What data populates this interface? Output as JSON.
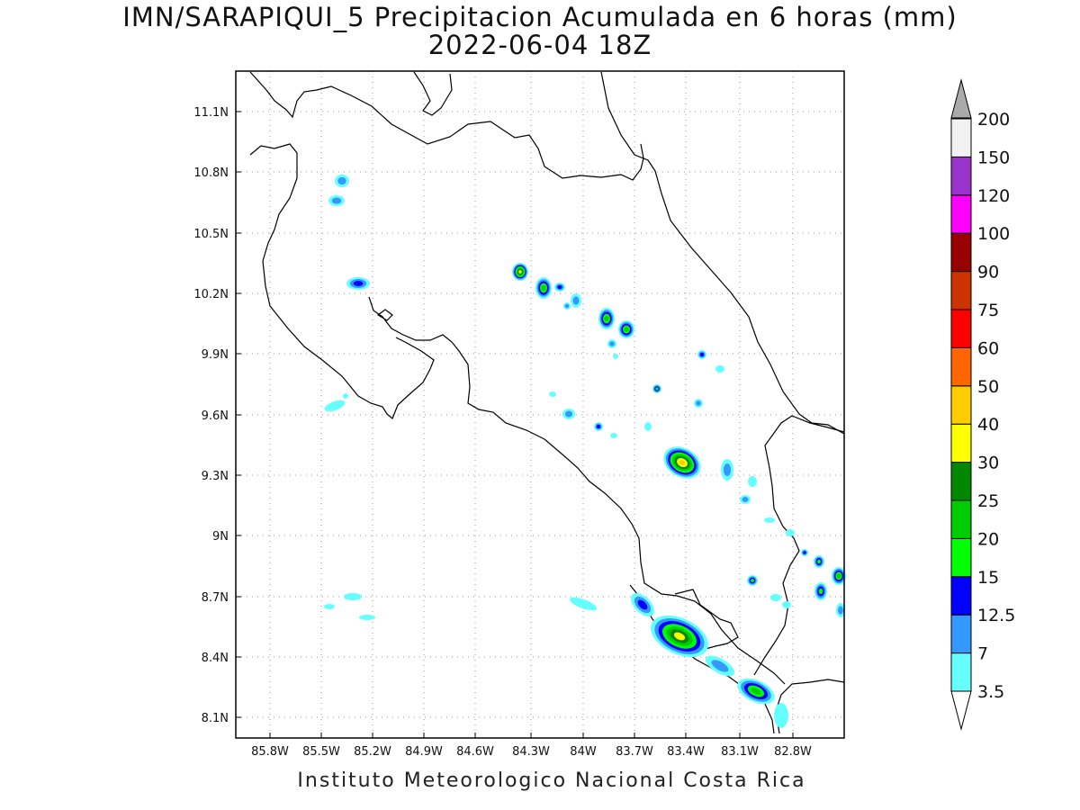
{
  "title": {
    "line1": "IMN/SARAPIQUI_5 Precipitacion Acumulada en 6 horas (mm)",
    "line2": "2022-06-04 18Z"
  },
  "credit": "Instituto Meteorologico Nacional Costa Rica",
  "axes": {
    "lon_ticks": [
      "85.8W",
      "85.5W",
      "85.2W",
      "84.9W",
      "84.6W",
      "84.3W",
      "84W",
      "83.7W",
      "83.4W",
      "83.1W",
      "82.8W"
    ],
    "lat_ticks": [
      "11.1N",
      "10.8N",
      "10.5N",
      "10.2N",
      "9.9N",
      "9.6N",
      "9.3N",
      "9N",
      "8.7N",
      "8.4N",
      "8.1N"
    ],
    "grid": "dotted"
  },
  "legend": {
    "levels": [
      {
        "label": "3.5",
        "color": "#66ffff"
      },
      {
        "label": "7",
        "color": "#3399ff"
      },
      {
        "label": "12.5",
        "color": "#0000ff"
      },
      {
        "label": "15",
        "color": "#00ff00"
      },
      {
        "label": "20",
        "color": "#00cc00"
      },
      {
        "label": "25",
        "color": "#008800"
      },
      {
        "label": "30",
        "color": "#ffff00"
      },
      {
        "label": "40",
        "color": "#ffcc00"
      },
      {
        "label": "50",
        "color": "#ff6600"
      },
      {
        "label": "60",
        "color": "#ff0000"
      },
      {
        "label": "75",
        "color": "#cc3300"
      },
      {
        "label": "90",
        "color": "#990000"
      },
      {
        "label": "100",
        "color": "#ff00ff"
      },
      {
        "label": "120",
        "color": "#9933cc"
      },
      {
        "label": "150",
        "color": "#f2f2f2"
      },
      {
        "label": "200",
        "color": ""
      }
    ],
    "under_color": "#ffffff",
    "over_color": "#aaaaaa"
  }
}
